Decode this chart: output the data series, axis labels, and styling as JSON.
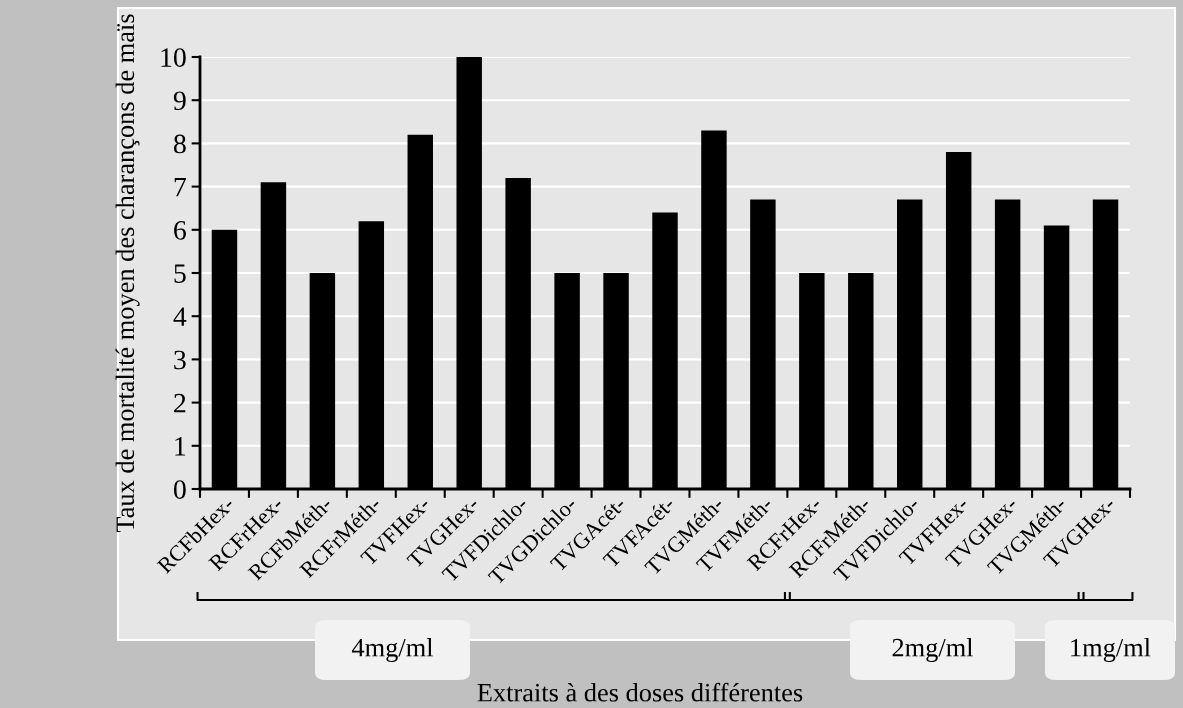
{
  "chart_data": {
    "type": "bar",
    "categories": [
      "RCFbHex-",
      "RCFrHex-",
      "RCFbMéth-",
      "RCFrMéth-",
      "TVFHex-",
      "TVGHex-",
      "TVFDichlo-",
      "TVGDichlo-",
      "TVGAcét-",
      "TVFAcét-",
      "TVGMéth-",
      "TVFMéth-",
      "RCFrHex-",
      "RCFrMéth-",
      "TVFDichlo-",
      "TVFHex-",
      "TVGHex-",
      "TVGMéth-",
      "TVGHex-"
    ],
    "series": [
      {
        "color": "#000000",
        "values": [
          6.0,
          7.1,
          5.0,
          6.2,
          8.2,
          10.0,
          7.2,
          5.0,
          5.0,
          6.4,
          8.3,
          6.7,
          5.0,
          5.0,
          6.7,
          7.8,
          6.7,
          6.1,
          6.7
        ]
      }
    ],
    "ylabel": "Taux de mortalité moyen des charançons de maïs",
    "xlabel": "Extraits à des doses différentes",
    "annotations": [
      "4mg/ml",
      "2mg/ml",
      "1mg/ml"
    ],
    "ylim": [
      0,
      10
    ],
    "yticks": [
      0,
      1,
      2,
      3,
      4,
      5,
      6,
      7,
      8,
      9,
      10
    ],
    "grid": "y",
    "legend": false
  }
}
